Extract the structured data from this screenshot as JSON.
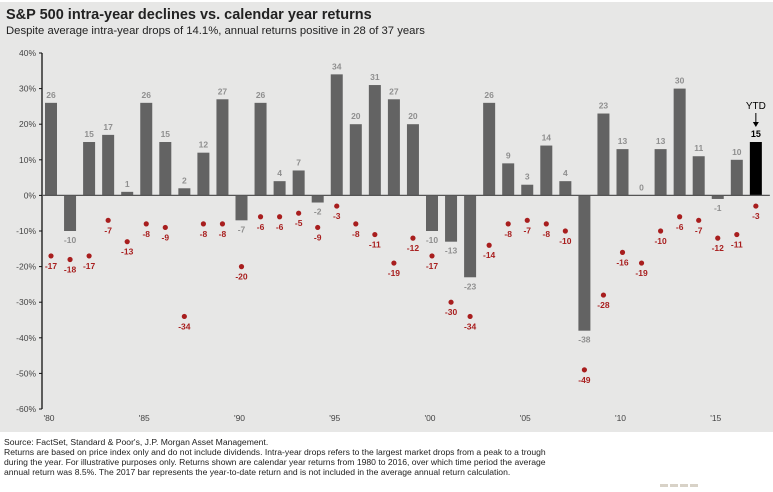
{
  "chart_data": {
    "type": "bar",
    "title": "S&P 500 intra-year declines vs. calendar year returns",
    "subtitle": "Despite average intra-year drops of 14.1%, annual returns positive in 28 of 37 years",
    "xlabel": "",
    "ylabel": "",
    "ylim": [
      -60,
      40
    ],
    "yticks": [
      40,
      30,
      20,
      10,
      0,
      -10,
      -20,
      -30,
      -40,
      -50,
      -60
    ],
    "ytick_labels": [
      "40%",
      "30%",
      "20%",
      "10%",
      "0%",
      "-10%",
      "-20%",
      "-30%",
      "-40%",
      "-50%",
      "-60%"
    ],
    "x": [
      1980,
      1981,
      1982,
      1983,
      1984,
      1985,
      1986,
      1987,
      1988,
      1989,
      1990,
      1991,
      1992,
      1993,
      1994,
      1995,
      1996,
      1997,
      1998,
      1999,
      2000,
      2001,
      2002,
      2003,
      2004,
      2005,
      2006,
      2007,
      2008,
      2009,
      2010,
      2011,
      2012,
      2013,
      2014,
      2015,
      2016,
      2017
    ],
    "xtick_years": [
      1980,
      1985,
      1990,
      1995,
      2000,
      2005,
      2010,
      2015
    ],
    "xtick_labels": [
      "'80",
      "'85",
      "'90",
      "'95",
      "'00",
      "'05",
      "'10",
      "'15"
    ],
    "series": [
      {
        "name": "Calendar year return",
        "kind": "bar",
        "color": "#636363",
        "label_color": "#8f8f8f",
        "values": [
          26,
          -10,
          15,
          17,
          1,
          26,
          15,
          2,
          12,
          27,
          -7,
          26,
          4,
          7,
          -2,
          34,
          20,
          31,
          27,
          20,
          -10,
          -13,
          -23,
          26,
          9,
          3,
          14,
          4,
          -38,
          23,
          13,
          0,
          13,
          30,
          11,
          -1,
          10,
          15
        ]
      },
      {
        "name": "Intra-year decline",
        "kind": "scatter",
        "color": "#a81e1e",
        "values": [
          -17,
          -18,
          -17,
          -7,
          -13,
          -8,
          -9,
          -34,
          -8,
          -8,
          -20,
          -6,
          -6,
          -5,
          -9,
          -3,
          -8,
          -11,
          -19,
          -12,
          -17,
          -30,
          -34,
          -14,
          -8,
          -7,
          -8,
          -10,
          -49,
          -28,
          -16,
          -19,
          -10,
          -6,
          -7,
          -12,
          -11,
          -3
        ]
      }
    ],
    "highlight": {
      "year": 2017,
      "label": "YTD",
      "color": "#000000"
    },
    "grid": false,
    "legend": "none"
  },
  "footnote": {
    "lines": [
      "Source: FactSet, Standard & Poor's, J.P. Morgan Asset Management.",
      "Returns are based on price index only and do not include dividends. Intra-year drops refers to the largest market drops from a peak to a trough",
      "during the year. For illustrative purposes only. Returns shown are calendar year returns from 1980 to 2016, over which time period the average",
      "annual return was 8.5%. The 2017 bar represents the year-to-date return and is not included in the average annual return calculation."
    ]
  }
}
